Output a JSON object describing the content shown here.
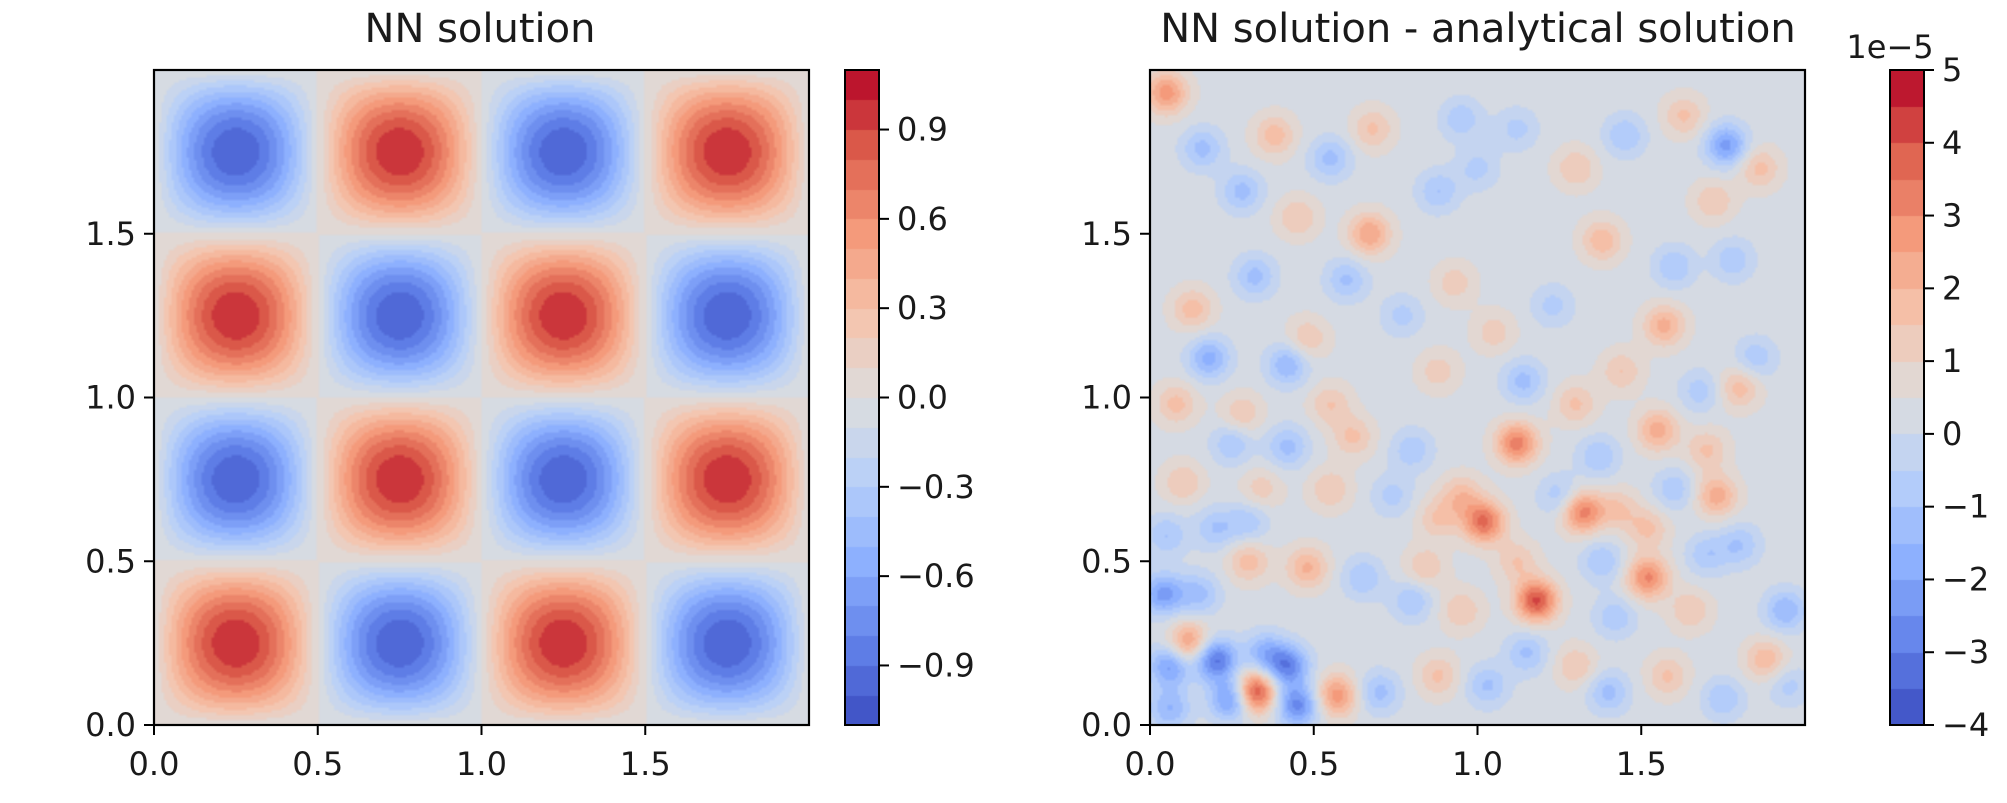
{
  "chart_data": [
    {
      "type": "heatmap",
      "title": "NN solution",
      "xlabel": "",
      "ylabel": "",
      "xlim": [
        0.0,
        2.0
      ],
      "ylim": [
        0.0,
        2.0
      ],
      "x_ticks": [
        "0.0",
        "0.5",
        "1.0",
        "1.5"
      ],
      "y_ticks": [
        "0.0",
        "0.5",
        "1.0",
        "1.5"
      ],
      "grid": false,
      "colormap": "coolwarm",
      "levels": 22,
      "value_range": [
        -1.1,
        1.1
      ],
      "field": "sin(2*pi*x)*sin(2*pi*y)",
      "peaks": [
        {
          "x": 0.25,
          "y": 0.25,
          "value": 1.0
        },
        {
          "x": 0.75,
          "y": 0.25,
          "value": -1.0
        },
        {
          "x": 1.25,
          "y": 0.25,
          "value": 1.0
        },
        {
          "x": 1.75,
          "y": 0.25,
          "value": -1.0
        },
        {
          "x": 0.25,
          "y": 0.75,
          "value": -1.0
        },
        {
          "x": 0.75,
          "y": 0.75,
          "value": 1.0
        },
        {
          "x": 1.25,
          "y": 0.75,
          "value": -1.0
        },
        {
          "x": 1.75,
          "y": 0.75,
          "value": 1.0
        },
        {
          "x": 0.25,
          "y": 1.25,
          "value": 1.0
        },
        {
          "x": 0.75,
          "y": 1.25,
          "value": -1.0
        },
        {
          "x": 1.25,
          "y": 1.25,
          "value": 1.0
        },
        {
          "x": 1.75,
          "y": 1.25,
          "value": -1.0
        },
        {
          "x": 0.25,
          "y": 1.75,
          "value": -1.0
        },
        {
          "x": 0.75,
          "y": 1.75,
          "value": 1.0
        },
        {
          "x": 1.25,
          "y": 1.75,
          "value": -1.0
        },
        {
          "x": 1.75,
          "y": 1.75,
          "value": 1.0
        }
      ],
      "colorbar": {
        "ticks": [
          "0.9",
          "0.6",
          "0.3",
          "0.0",
          "−0.3",
          "−0.6",
          "−0.9"
        ],
        "tick_values": [
          0.9,
          0.6,
          0.3,
          0.0,
          -0.3,
          -0.6,
          -0.9
        ],
        "range": [
          -1.1,
          1.1
        ],
        "offset_label": ""
      }
    },
    {
      "type": "heatmap",
      "title": "NN solution - analytical solution",
      "xlabel": "",
      "ylabel": "",
      "xlim": [
        0.0,
        2.0
      ],
      "ylim": [
        0.0,
        2.0
      ],
      "x_ticks": [
        "0.0",
        "0.5",
        "1.0",
        "1.5"
      ],
      "y_ticks": [
        "0.0",
        "0.5",
        "1.0",
        "1.5"
      ],
      "grid": false,
      "colormap": "coolwarm",
      "levels": 18,
      "value_range": [
        -4e-05,
        5e-05
      ],
      "background_value": 3e-06,
      "blobs": [
        {
          "x": 0.05,
          "y": 1.93,
          "value": 2.5
        },
        {
          "x": 0.16,
          "y": 1.76,
          "value": -1.5
        },
        {
          "x": 0.38,
          "y": 1.8,
          "value": 1.5
        },
        {
          "x": 0.55,
          "y": 1.73,
          "value": -1.5
        },
        {
          "x": 0.68,
          "y": 1.82,
          "value": 1.3
        },
        {
          "x": 0.95,
          "y": 1.85,
          "value": -1.2
        },
        {
          "x": 1.12,
          "y": 1.82,
          "value": -1.0
        },
        {
          "x": 0.88,
          "y": 1.63,
          "value": -1.3
        },
        {
          "x": 1.0,
          "y": 1.7,
          "value": -1.0
        },
        {
          "x": 1.3,
          "y": 1.7,
          "value": 1.2
        },
        {
          "x": 1.45,
          "y": 1.8,
          "value": -1.3
        },
        {
          "x": 1.63,
          "y": 1.86,
          "value": 1.3
        },
        {
          "x": 1.76,
          "y": 1.77,
          "value": -2.5
        },
        {
          "x": 1.86,
          "y": 1.7,
          "value": 1.4
        },
        {
          "x": 0.28,
          "y": 1.63,
          "value": -1.5
        },
        {
          "x": 0.45,
          "y": 1.55,
          "value": 1.2
        },
        {
          "x": 0.67,
          "y": 1.5,
          "value": 2.2
        },
        {
          "x": 0.32,
          "y": 1.37,
          "value": -1.5
        },
        {
          "x": 0.6,
          "y": 1.36,
          "value": -1.4
        },
        {
          "x": 0.13,
          "y": 1.27,
          "value": 1.5
        },
        {
          "x": 1.38,
          "y": 1.48,
          "value": 1.6
        },
        {
          "x": 1.6,
          "y": 1.4,
          "value": -1.3
        },
        {
          "x": 1.72,
          "y": 1.6,
          "value": 1.2
        },
        {
          "x": 1.78,
          "y": 1.42,
          "value": -1.2
        },
        {
          "x": 0.48,
          "y": 1.18,
          "value": 1.2
        },
        {
          "x": 0.77,
          "y": 1.25,
          "value": -1.0
        },
        {
          "x": 0.93,
          "y": 1.35,
          "value": 1.0
        },
        {
          "x": 1.05,
          "y": 1.2,
          "value": 1.0
        },
        {
          "x": 1.23,
          "y": 1.28,
          "value": -1.0
        },
        {
          "x": 1.57,
          "y": 1.22,
          "value": 1.9
        },
        {
          "x": 1.85,
          "y": 1.12,
          "value": -1.2
        },
        {
          "x": 0.18,
          "y": 1.12,
          "value": -2.0
        },
        {
          "x": 0.42,
          "y": 1.1,
          "value": -1.8
        },
        {
          "x": 0.55,
          "y": 0.98,
          "value": 1.2
        },
        {
          "x": 0.62,
          "y": 0.88,
          "value": 1.3
        },
        {
          "x": 0.88,
          "y": 1.08,
          "value": 1.0
        },
        {
          "x": 1.14,
          "y": 1.05,
          "value": -1.5
        },
        {
          "x": 1.3,
          "y": 0.98,
          "value": 1.3
        },
        {
          "x": 1.44,
          "y": 1.08,
          "value": 1.2
        },
        {
          "x": 1.68,
          "y": 1.02,
          "value": -1.1
        },
        {
          "x": 1.8,
          "y": 1.03,
          "value": 1.5
        },
        {
          "x": 0.08,
          "y": 0.98,
          "value": 1.4
        },
        {
          "x": 0.28,
          "y": 0.95,
          "value": 1.2
        },
        {
          "x": 0.25,
          "y": 0.86,
          "value": -1.3
        },
        {
          "x": 0.42,
          "y": 0.85,
          "value": -1.5
        },
        {
          "x": 0.8,
          "y": 0.84,
          "value": -1.2
        },
        {
          "x": 1.12,
          "y": 0.86,
          "value": 3.0
        },
        {
          "x": 1.37,
          "y": 0.82,
          "value": -1.3
        },
        {
          "x": 1.55,
          "y": 0.9,
          "value": 2.0
        },
        {
          "x": 1.7,
          "y": 0.84,
          "value": 1.3
        },
        {
          "x": 0.1,
          "y": 0.74,
          "value": 1.2
        },
        {
          "x": 0.34,
          "y": 0.72,
          "value": 1.0
        },
        {
          "x": 0.55,
          "y": 0.72,
          "value": 1.2
        },
        {
          "x": 0.74,
          "y": 0.7,
          "value": -1.0
        },
        {
          "x": 0.95,
          "y": 0.7,
          "value": 1.5
        },
        {
          "x": 1.25,
          "y": 0.7,
          "value": -1.2
        },
        {
          "x": 1.43,
          "y": 0.66,
          "value": 1.2
        },
        {
          "x": 1.6,
          "y": 0.72,
          "value": -1.2
        },
        {
          "x": 1.73,
          "y": 0.7,
          "value": 2.0
        },
        {
          "x": 0.05,
          "y": 0.58,
          "value": -1.3
        },
        {
          "x": 0.2,
          "y": 0.6,
          "value": -1.3
        },
        {
          "x": 0.3,
          "y": 0.62,
          "value": -1.2
        },
        {
          "x": 0.88,
          "y": 0.63,
          "value": 1.2
        },
        {
          "x": 1.02,
          "y": 0.62,
          "value": 3.3
        },
        {
          "x": 1.32,
          "y": 0.65,
          "value": 3.0
        },
        {
          "x": 1.52,
          "y": 0.6,
          "value": 1.3
        },
        {
          "x": 1.8,
          "y": 0.55,
          "value": -1.3
        },
        {
          "x": 0.3,
          "y": 0.5,
          "value": 1.5
        },
        {
          "x": 0.48,
          "y": 0.48,
          "value": 1.8
        },
        {
          "x": 0.65,
          "y": 0.45,
          "value": -1.3
        },
        {
          "x": 0.84,
          "y": 0.48,
          "value": 1.2
        },
        {
          "x": 1.12,
          "y": 0.5,
          "value": 1.2
        },
        {
          "x": 1.18,
          "y": 0.38,
          "value": 3.8
        },
        {
          "x": 1.38,
          "y": 0.5,
          "value": -1.3
        },
        {
          "x": 1.52,
          "y": 0.45,
          "value": 2.8
        },
        {
          "x": 1.7,
          "y": 0.52,
          "value": -1.2
        },
        {
          "x": 0.04,
          "y": 0.4,
          "value": -2.5
        },
        {
          "x": 0.15,
          "y": 0.4,
          "value": -1.5
        },
        {
          "x": 0.8,
          "y": 0.38,
          "value": -1.3
        },
        {
          "x": 0.95,
          "y": 0.35,
          "value": 1.2
        },
        {
          "x": 1.42,
          "y": 0.33,
          "value": -1.2
        },
        {
          "x": 1.65,
          "y": 0.35,
          "value": 1.2
        },
        {
          "x": 1.94,
          "y": 0.35,
          "value": -1.8
        },
        {
          "x": 0.12,
          "y": 0.25,
          "value": 2.5
        },
        {
          "x": 0.06,
          "y": 0.18,
          "value": -2.5
        },
        {
          "x": 0.2,
          "y": 0.2,
          "value": -3.5
        },
        {
          "x": 0.25,
          "y": 0.08,
          "value": -3.0
        },
        {
          "x": 0.32,
          "y": 0.1,
          "value": 4.2
        },
        {
          "x": 0.35,
          "y": 0.22,
          "value": -1.8
        },
        {
          "x": 0.42,
          "y": 0.18,
          "value": -3.0
        },
        {
          "x": 0.45,
          "y": 0.06,
          "value": -3.0
        },
        {
          "x": 0.57,
          "y": 0.09,
          "value": 2.5
        },
        {
          "x": 0.7,
          "y": 0.1,
          "value": -1.5
        },
        {
          "x": 0.88,
          "y": 0.15,
          "value": 1.3
        },
        {
          "x": 1.03,
          "y": 0.12,
          "value": -1.4
        },
        {
          "x": 1.15,
          "y": 0.22,
          "value": -1.4
        },
        {
          "x": 1.3,
          "y": 0.18,
          "value": 1.2
        },
        {
          "x": 1.4,
          "y": 0.1,
          "value": -1.5
        },
        {
          "x": 1.58,
          "y": 0.15,
          "value": 1.3
        },
        {
          "x": 1.75,
          "y": 0.08,
          "value": -1.3
        },
        {
          "x": 1.88,
          "y": 0.2,
          "value": 1.6
        },
        {
          "x": 1.95,
          "y": 0.12,
          "value": -1.0
        },
        {
          "x": 0.06,
          "y": 0.05,
          "value": -1.8
        }
      ],
      "colorbar": {
        "ticks": [
          "5",
          "4",
          "3",
          "2",
          "1",
          "0",
          "−1",
          "−2",
          "−3",
          "−4"
        ],
        "tick_values": [
          5,
          4,
          3,
          2,
          1,
          0,
          -1,
          -2,
          -3,
          -4
        ],
        "range": [
          -4,
          5
        ],
        "offset_label": "1e−5"
      }
    }
  ]
}
